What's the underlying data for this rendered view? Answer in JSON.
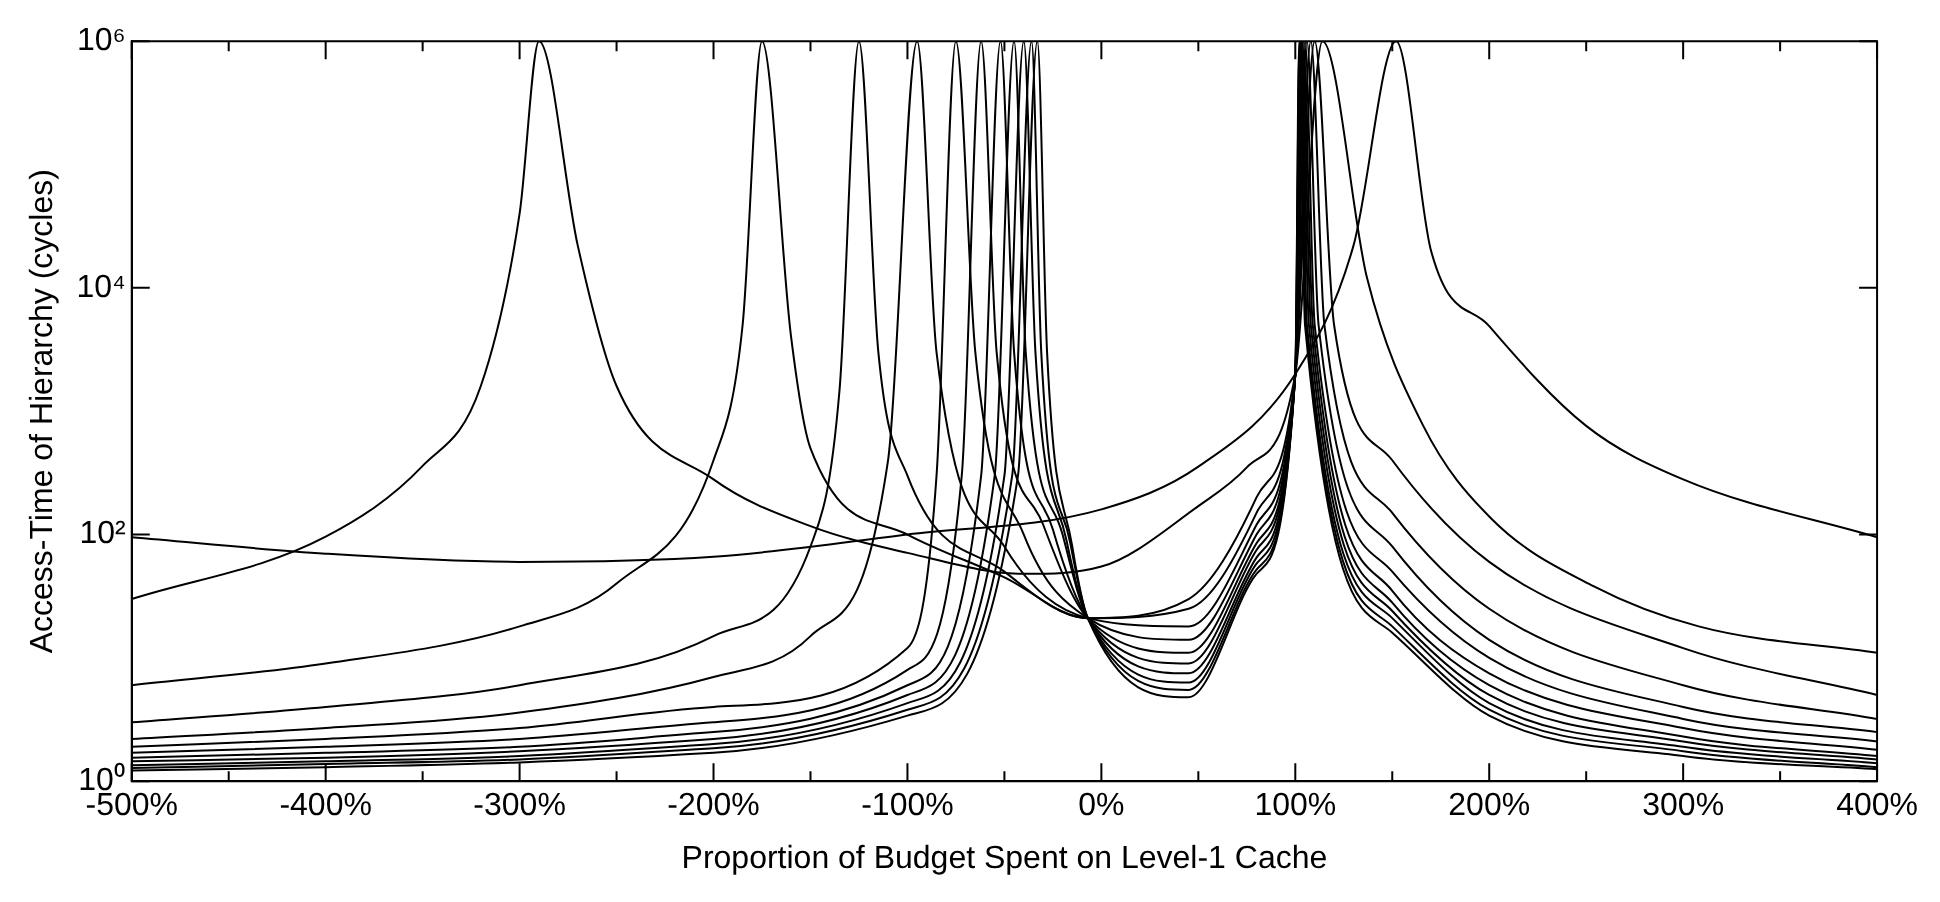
{
  "chart_data": {
    "type": "line",
    "xlabel": "Proportion of Budget Spent on Level-1 Cache",
    "ylabel": "Access-Time of Hierarchy (cycles)",
    "log": "y",
    "grid": false,
    "legend": false,
    "marker": "none",
    "line_style": "solid",
    "xlim": [
      -500,
      400
    ],
    "ylim": [
      1,
      1000000
    ],
    "xticks": [
      {
        "value": -500,
        "label": "-500%"
      },
      {
        "value": -450,
        "label": null
      },
      {
        "value": -400,
        "label": "-400%"
      },
      {
        "value": -350,
        "label": null
      },
      {
        "value": -300,
        "label": "-300%"
      },
      {
        "value": -250,
        "label": null
      },
      {
        "value": -200,
        "label": "-200%"
      },
      {
        "value": -150,
        "label": null
      },
      {
        "value": -100,
        "label": "-100%"
      },
      {
        "value": -50,
        "label": null
      },
      {
        "value": 0,
        "label": "0%"
      },
      {
        "value": 50,
        "label": null
      },
      {
        "value": 100,
        "label": "100%"
      },
      {
        "value": 150,
        "label": null
      },
      {
        "value": 200,
        "label": "200%"
      },
      {
        "value": 250,
        "label": null
      },
      {
        "value": 300,
        "label": "300%"
      },
      {
        "value": 350,
        "label": null
      },
      {
        "value": 400,
        "label": "400%"
      }
    ],
    "yticks": [
      {
        "value": 1,
        "label": "10⁰"
      },
      {
        "value": 100,
        "label": "10²"
      },
      {
        "value": 10000,
        "label": "10⁴"
      },
      {
        "value": 1000000,
        "label": "10⁶"
      }
    ],
    "series": [
      {
        "color": "#000000",
        "x": [
          -500,
          -400,
          -300,
          -200,
          -100,
          0,
          50,
          100,
          130,
          152,
          170,
          200,
          250,
          300,
          400
        ],
        "values": [
          95,
          70,
          60,
          66,
          100,
          160,
          355,
          2000,
          22000,
          1000000,
          20000,
          4900,
          760,
          280,
          95
        ]
      },
      {
        "color": "#000000",
        "x": [
          -500,
          -400,
          -350,
          -320,
          -300,
          -290,
          -270,
          -250,
          -200,
          -150,
          -100,
          -40,
          0,
          50,
          75,
          100,
          114,
          137,
          166,
          201,
          254,
          308,
          400
        ],
        "values": [
          30,
          96,
          360,
          1600,
          40000,
          1000000,
          22000,
          1600,
          280,
          117,
          71,
          48,
          55,
          170,
          350,
          2000,
          1000000,
          12000,
          760,
          135,
          38,
          18,
          11
        ]
      },
      {
        "color": "#000000",
        "x": [
          -500,
          -400,
          -300,
          -250,
          -200,
          -185,
          -175,
          -160,
          -150,
          -100,
          -50,
          -7,
          45,
          80,
          100,
          110,
          120,
          150,
          200,
          300,
          400
        ],
        "values": [
          6,
          9,
          18,
          40,
          400,
          5000,
          1000000,
          4000,
          500,
          100,
          45,
          21,
          30,
          200,
          2000,
          1000000,
          5000,
          400,
          60,
          12,
          5
        ]
      },
      {
        "color": "#000000",
        "x": [
          -500,
          -400,
          -300,
          -200,
          -150,
          -135,
          -125,
          -115,
          -100,
          -50,
          -7,
          45,
          80,
          100,
          108,
          115,
          150,
          200,
          300,
          400
        ],
        "values": [
          3,
          4,
          6,
          15,
          80,
          1500,
          1000000,
          3000,
          300,
          50,
          21,
          25,
          150,
          2000,
          1000000,
          5000,
          150,
          25,
          6,
          3.2
        ]
      },
      {
        "color": "#000000",
        "x": [
          -500,
          -400,
          -300,
          -200,
          -150,
          -110,
          -95,
          -85,
          -50,
          -7,
          45,
          80,
          100,
          106,
          112,
          150,
          200,
          300,
          400
        ],
        "values": [
          2.2,
          2.7,
          3.6,
          7,
          15,
          400,
          1000000,
          3000,
          80,
          21,
          18,
          120,
          2000,
          1000000,
          5000,
          80,
          14,
          4,
          2.5
        ]
      },
      {
        "color": "#000000",
        "x": [
          -500,
          -400,
          -300,
          -200,
          -100,
          -85,
          -75,
          -65,
          -40,
          -7,
          45,
          80,
          100,
          105,
          110,
          150,
          200,
          300,
          400
        ],
        "values": [
          1.9,
          2.2,
          2.7,
          4,
          12,
          300,
          1000000,
          3000,
          100,
          21,
          14,
          100,
          2000,
          1000000,
          5000,
          50,
          10,
          3.2,
          2.1
        ]
      },
      {
        "color": "#000000",
        "x": [
          -500,
          -400,
          -300,
          -200,
          -100,
          -72,
          -62,
          -54,
          -30,
          -7,
          45,
          80,
          100,
          104,
          109,
          150,
          200,
          300,
          400
        ],
        "values": [
          1.7,
          1.9,
          2.2,
          3,
          8,
          300,
          1000000,
          3000,
          120,
          21,
          11,
          85,
          2000,
          1000000,
          5000,
          35,
          7.5,
          2.7,
          1.8
        ]
      },
      {
        "color": "#000000",
        "x": [
          -500,
          -400,
          -300,
          -200,
          -100,
          -62,
          -52,
          -45,
          -25,
          -7,
          45,
          80,
          100,
          103.5,
          108,
          150,
          200,
          300,
          400
        ],
        "values": [
          1.55,
          1.7,
          1.9,
          2.5,
          6,
          300,
          1000000,
          3000,
          110,
          21,
          9,
          75,
          2000,
          1000000,
          5000,
          28,
          6,
          2.3,
          1.6
        ]
      },
      {
        "color": "#000000",
        "x": [
          -500,
          -400,
          -300,
          -200,
          -100,
          -55,
          -45,
          -39,
          -20,
          -7,
          45,
          80,
          100,
          103,
          107,
          150,
          200,
          300,
          400
        ],
        "values": [
          1.45,
          1.55,
          1.75,
          2.2,
          5,
          300,
          1000000,
          3000,
          100,
          21,
          7.5,
          65,
          2000,
          1000000,
          5000,
          24,
          5,
          2.1,
          1.5
        ]
      },
      {
        "color": "#000000",
        "x": [
          -500,
          -400,
          -300,
          -200,
          -100,
          -50,
          -40,
          -34,
          -18,
          -7,
          45,
          80,
          100,
          102.5,
          106,
          150,
          200,
          300,
          400
        ],
        "values": [
          1.35,
          1.45,
          1.6,
          2,
          4.3,
          300,
          1000000,
          3000,
          90,
          21,
          6.3,
          58,
          2000,
          1000000,
          5000,
          21,
          4.3,
          1.9,
          1.4
        ]
      },
      {
        "color": "#000000",
        "x": [
          -500,
          -400,
          -300,
          -200,
          -100,
          -46,
          -36,
          -31,
          -16,
          -7,
          45,
          80,
          100,
          102.2,
          105.5,
          150,
          200,
          300,
          400
        ],
        "values": [
          1.28,
          1.38,
          1.5,
          1.85,
          3.8,
          300,
          1000000,
          3000,
          85,
          21,
          5.5,
          52,
          2000,
          1000000,
          5000,
          18,
          3.8,
          1.75,
          1.3
        ]
      },
      {
        "color": "#000000",
        "x": [
          -500,
          -400,
          -300,
          -200,
          -100,
          -43,
          -33,
          -28,
          -15,
          -7,
          45,
          80,
          100,
          102,
          105,
          150,
          200,
          300,
          400
        ],
        "values": [
          1.22,
          1.3,
          1.42,
          1.7,
          3.4,
          300,
          1000000,
          3000,
          80,
          21,
          4.8,
          48,
          2000,
          1000000,
          5000,
          16,
          3.4,
          1.6,
          1.25
        ]
      }
    ]
  }
}
